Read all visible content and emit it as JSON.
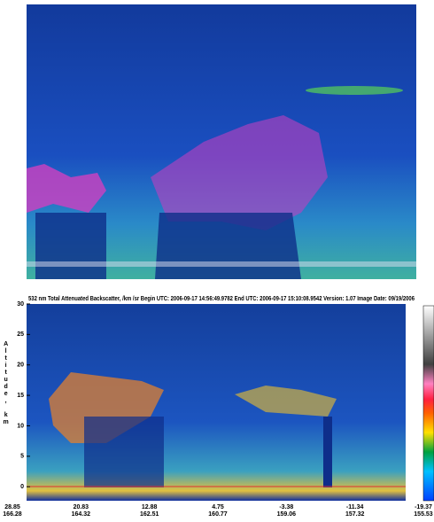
{
  "chart_data": {
    "type": "curtain",
    "title": "532 nm Total Attenuated Backscatter, /km /sr    Begin UTC: 2006-09-17  14:56:49.9782    End UTC: 2006-09-17  15:10:08.9542  Version: 1.07  Image Date: 09/19/2006",
    "ylabel": "Altitude, km",
    "ylim": [
      -2.3,
      30
    ],
    "yticks": [
      0,
      5,
      10,
      15,
      20,
      25,
      30
    ],
    "xticklabels": [
      {
        "lat": "28.85",
        "lon": "166.28"
      },
      {
        "lat": "20.83",
        "lon": "164.32"
      },
      {
        "lat": "12.88",
        "lon": "162.51"
      },
      {
        "lat": "4.75",
        "lon": "160.77"
      },
      {
        "lat": "-3.38",
        "lon": "159.06"
      },
      {
        "lat": "-11.34",
        "lon": "157.32"
      },
      {
        "lat": "-19.37",
        "lon": "155.53"
      }
    ]
  }
}
